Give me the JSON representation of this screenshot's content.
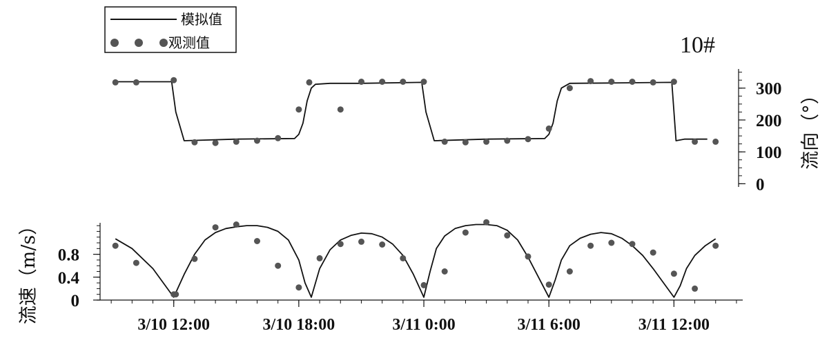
{
  "chart_data": {
    "type": "line",
    "station_label": "10#",
    "legend": {
      "simulated": "模拟值",
      "observed": "观测值"
    },
    "x_tick_labels": [
      "3/10 12:00",
      "3/10 18:00",
      "3/11 0:00",
      "3/11 6:00",
      "3/11 12:00"
    ],
    "x_tick_hours": [
      12,
      18,
      24,
      30,
      36
    ],
    "xlim_hours": [
      8.3,
      39.3
    ],
    "panels": [
      {
        "id": "direction",
        "ylabel": "流向（°）",
        "y_axis_side": "right",
        "ylim": [
          -10,
          360
        ],
        "yticks": [
          0,
          100,
          200,
          300
        ],
        "simulated": {
          "name": "模拟值",
          "x": [
            9.2,
            11.9,
            12.1,
            12.5,
            15.0,
            17.8,
            18.0,
            18.2,
            18.4,
            18.6,
            18.8,
            19.5,
            21.0,
            23.9,
            24.1,
            24.5,
            27.0,
            29.8,
            30.0,
            30.2,
            30.4,
            30.6,
            31.0,
            33.0,
            35.9,
            36.1,
            36.5,
            37.6
          ],
          "y": [
            320,
            320,
            225,
            135,
            140,
            142,
            155,
            190,
            260,
            300,
            312,
            315,
            315,
            318,
            225,
            135,
            140,
            142,
            155,
            190,
            260,
            300,
            315,
            316,
            318,
            135,
            140,
            140
          ]
        },
        "observed": {
          "name": "观测值",
          "x": [
            9.2,
            10.2,
            12.0,
            13.0,
            14.0,
            15.0,
            16.0,
            17.0,
            18.0,
            18.5,
            20.0,
            21.0,
            22.0,
            23.0,
            24.0,
            25.0,
            26.0,
            27.0,
            28.0,
            29.0,
            30.0,
            31.0,
            32.0,
            33.0,
            34.0,
            35.0,
            36.0,
            37.0,
            38.0
          ],
          "y": [
            318,
            318,
            325,
            130,
            128,
            132,
            135,
            143,
            233,
            318,
            233,
            320,
            320,
            320,
            320,
            132,
            130,
            132,
            135,
            140,
            173,
            300,
            322,
            320,
            320,
            318,
            320,
            132,
            132
          ]
        }
      },
      {
        "id": "speed",
        "ylabel": "流速（m/s）",
        "y_axis_side": "left",
        "ylim": [
          0,
          1.35
        ],
        "yticks": [
          0,
          0.4,
          0.8
        ],
        "yticks_display": [
          "0",
          "0.4",
          "0.8"
        ],
        "simulated": {
          "name": "模拟值",
          "x": [
            9.2,
            10.0,
            11.0,
            11.5,
            12.0,
            12.5,
            13.0,
            13.5,
            14.0,
            14.5,
            15.0,
            15.5,
            16.0,
            16.5,
            17.0,
            17.5,
            18.0,
            18.3,
            18.6,
            19.0,
            19.5,
            20.0,
            20.5,
            21.0,
            21.5,
            22.0,
            22.5,
            23.0,
            23.5,
            24.0,
            24.3,
            24.6,
            25.0,
            25.5,
            26.0,
            26.5,
            27.0,
            27.5,
            28.0,
            28.5,
            29.0,
            29.5,
            30.0,
            30.3,
            30.6,
            31.0,
            31.5,
            32.0,
            32.5,
            33.0,
            33.5,
            34.0,
            34.5,
            35.0,
            35.5,
            36.0,
            36.3,
            36.6,
            37.0,
            37.5,
            38.0
          ],
          "y": [
            1.07,
            0.9,
            0.55,
            0.3,
            0.05,
            0.45,
            0.8,
            1.05,
            1.18,
            1.25,
            1.28,
            1.3,
            1.3,
            1.27,
            1.2,
            1.05,
            0.7,
            0.3,
            0.05,
            0.55,
            0.88,
            1.05,
            1.13,
            1.17,
            1.16,
            1.1,
            0.98,
            0.78,
            0.45,
            0.05,
            0.5,
            0.9,
            1.12,
            1.25,
            1.3,
            1.32,
            1.32,
            1.3,
            1.22,
            1.05,
            0.75,
            0.4,
            0.05,
            0.35,
            0.7,
            0.95,
            1.08,
            1.15,
            1.18,
            1.16,
            1.08,
            0.95,
            0.78,
            0.55,
            0.3,
            0.05,
            0.25,
            0.55,
            0.78,
            0.95,
            1.07
          ]
        },
        "observed": {
          "name": "观测值",
          "x": [
            9.2,
            10.2,
            12.0,
            12.1,
            13.0,
            14.0,
            15.0,
            16.0,
            17.0,
            18.0,
            19.0,
            20.0,
            21.0,
            22.0,
            23.0,
            24.0,
            25.0,
            26.0,
            27.0,
            28.0,
            29.0,
            30.0,
            31.0,
            32.0,
            33.0,
            34.0,
            35.0,
            36.0,
            37.0,
            38.0
          ],
          "y": [
            0.95,
            0.65,
            0.1,
            0.1,
            0.72,
            1.27,
            1.32,
            1.03,
            0.6,
            0.22,
            0.73,
            0.98,
            1.02,
            0.97,
            0.73,
            0.26,
            0.5,
            1.18,
            1.36,
            1.13,
            0.76,
            0.27,
            0.5,
            0.95,
            1.0,
            0.98,
            0.83,
            0.46,
            0.2,
            0.95
          ]
        }
      }
    ],
    "colors": {
      "line": "#111111",
      "marker": "#555555"
    },
    "grid": false,
    "legend_position": "top-left"
  }
}
